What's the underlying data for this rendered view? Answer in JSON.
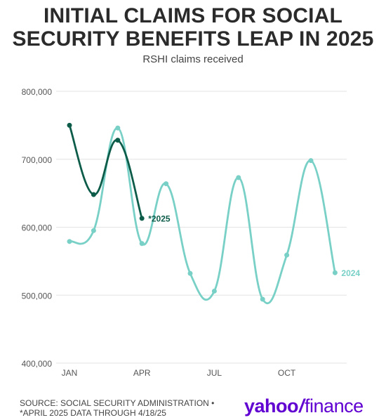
{
  "header": {
    "title_line1": "INITIAL CLAIMS FOR SOCIAL",
    "title_line2": "SECURITY BENEFITS LEAP IN 2025",
    "subtitle": "RSHI claims received"
  },
  "footer": {
    "source_line1": "SOURCE: SOCIAL SECURITY ADMINISTRATION •",
    "source_line2": "*APRIL 2025 DATA THROUGH 4/18/25"
  },
  "logo": {
    "part1": "yahoo",
    "slash": "/",
    "part2": "finance"
  },
  "chart_data": {
    "type": "line",
    "title": "INITIAL CLAIMS FOR SOCIAL SECURITY BENEFITS LEAP IN 2025",
    "subtitle": "RSHI claims received",
    "xlabel": "",
    "ylabel": "",
    "ylim": [
      400000,
      800000
    ],
    "yticks": [
      400000,
      500000,
      600000,
      700000,
      800000
    ],
    "ytick_labels": [
      "400,000",
      "500,000",
      "600,000",
      "700,000",
      "800,000"
    ],
    "xtick_labels": [
      "JAN",
      "APR",
      "JUL",
      "OCT"
    ],
    "xtick_months": [
      1,
      4,
      7,
      10
    ],
    "grid": true,
    "series": [
      {
        "name": "2024",
        "label": "2024",
        "color": "#78d0c6",
        "months": [
          1,
          2,
          3,
          4,
          5,
          6,
          7,
          8,
          9,
          10,
          11,
          12
        ],
        "values": [
          579000,
          595000,
          746000,
          576000,
          664000,
          532000,
          506000,
          673000,
          494000,
          559000,
          698000,
          533000
        ]
      },
      {
        "name": "2025",
        "label": "*2025",
        "color": "#0d5c4a",
        "months": [
          1,
          2,
          3,
          4
        ],
        "values": [
          750000,
          648000,
          728000,
          613000
        ]
      }
    ]
  }
}
